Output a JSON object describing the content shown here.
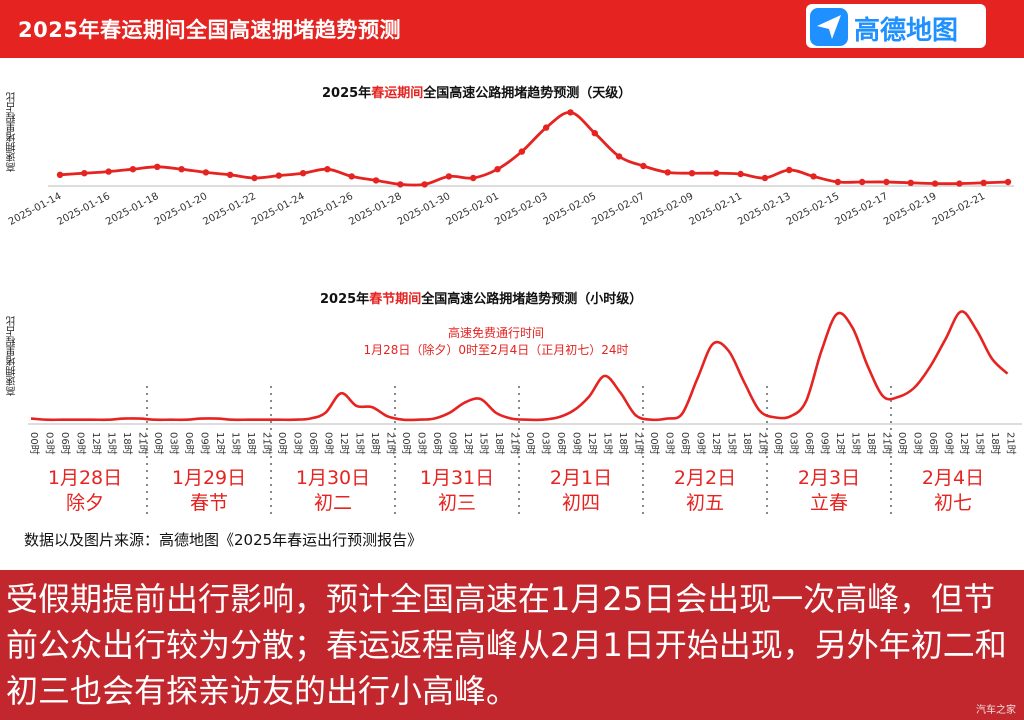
{
  "header": {
    "title": "2025年春运期间全国高速拥堵趋势预测",
    "logo_text": "高德地图",
    "color": "#e52421"
  },
  "chart_data": [
    {
      "type": "line",
      "title_parts": [
        "2025年",
        "春运期间",
        "全国高速公路拥堵趋势预测（天级）"
      ],
      "ylabel": "高速拥堵里程占比",
      "color": "#e52421",
      "x": [
        "2025-01-14",
        "2025-01-15",
        "2025-01-16",
        "2025-01-17",
        "2025-01-18",
        "2025-01-19",
        "2025-01-20",
        "2025-01-21",
        "2025-01-22",
        "2025-01-23",
        "2025-01-24",
        "2025-01-25",
        "2025-01-26",
        "2025-01-27",
        "2025-01-28",
        "2025-01-29",
        "2025-01-30",
        "2025-01-31",
        "2025-02-01",
        "2025-02-02",
        "2025-02-03",
        "2025-02-04",
        "2025-02-05",
        "2025-02-06",
        "2025-02-07",
        "2025-02-08",
        "2025-02-09",
        "2025-02-10",
        "2025-02-11",
        "2025-02-12",
        "2025-02-13",
        "2025-02-14",
        "2025-02-15",
        "2025-02-16",
        "2025-02-17",
        "2025-02-18",
        "2025-02-19",
        "2025-02-20",
        "2025-02-21",
        "2025-02-22"
      ],
      "tick_labels": [
        "2025-01-14",
        "2025-01-16",
        "2025-01-18",
        "2025-01-20",
        "2025-01-22",
        "2025-01-24",
        "2025-01-26",
        "2025-01-28",
        "2025-01-30",
        "2025-02-01",
        "2025-02-03",
        "2025-02-05",
        "2025-02-07",
        "2025-02-09",
        "2025-02-11",
        "2025-02-13",
        "2025-02-15",
        "2025-02-17",
        "2025-02-19",
        "2025-02-21"
      ],
      "values": [
        0.14,
        0.16,
        0.18,
        0.21,
        0.24,
        0.21,
        0.17,
        0.14,
        0.1,
        0.13,
        0.16,
        0.21,
        0.12,
        0.07,
        0.02,
        0.02,
        0.12,
        0.1,
        0.21,
        0.43,
        0.73,
        0.92,
        0.66,
        0.37,
        0.25,
        0.17,
        0.16,
        0.16,
        0.15,
        0.1,
        0.2,
        0.12,
        0.05,
        0.05,
        0.05,
        0.04,
        0.03,
        0.03,
        0.04,
        0.05
      ]
    },
    {
      "type": "line",
      "title_parts": [
        "2025年",
        "春节期间",
        "全国高速公路拥堵趋势预测（小时级）"
      ],
      "ylabel": "高速拥堵里程占比",
      "color": "#e52421",
      "annotation": [
        "高速免费通行时间",
        "1月28日（除夕）0时至2月4日（正月初七）24时"
      ],
      "hour_ticks": [
        "00时",
        "03时",
        "06时",
        "09时",
        "12时",
        "15时",
        "18时",
        "21时"
      ],
      "days": [
        {
          "date": "1月28日",
          "lunar": "除夕",
          "values": [
            0.03,
            0.02,
            0.02,
            0.02,
            0.02,
            0.02,
            0.03,
            0.03
          ]
        },
        {
          "date": "1月29日",
          "lunar": "春节",
          "values": [
            0.02,
            0.02,
            0.02,
            0.03,
            0.03,
            0.02,
            0.02,
            0.02
          ]
        },
        {
          "date": "1月30日",
          "lunar": "初二",
          "values": [
            0.02,
            0.02,
            0.03,
            0.08,
            0.25,
            0.14,
            0.13,
            0.05
          ]
        },
        {
          "date": "1月31日",
          "lunar": "初三",
          "values": [
            0.02,
            0.02,
            0.03,
            0.08,
            0.17,
            0.2,
            0.08,
            0.03
          ]
        },
        {
          "date": "2月1日",
          "lunar": "初四",
          "values": [
            0.02,
            0.02,
            0.04,
            0.1,
            0.22,
            0.4,
            0.26,
            0.06
          ]
        },
        {
          "date": "2月2日",
          "lunar": "初五",
          "values": [
            0.02,
            0.03,
            0.07,
            0.38,
            0.68,
            0.62,
            0.35,
            0.1
          ]
        },
        {
          "date": "2月3日",
          "lunar": "立春",
          "values": [
            0.04,
            0.05,
            0.18,
            0.62,
            0.94,
            0.82,
            0.48,
            0.22
          ]
        },
        {
          "date": "2月4日",
          "lunar": "初七",
          "values": [
            0.22,
            0.3,
            0.48,
            0.72,
            0.96,
            0.8,
            0.55,
            0.42
          ]
        }
      ]
    }
  ],
  "source": "数据以及图片来源：高德地图《2025年春运出行预测报告》",
  "caption": "受假期提前出行影响，预计全国高速在1月25日会出现一次高峰，但节前公众出行较为分散；春运返程高峰从2月1日开始出现，另外年初二和初三也会有探亲访友的出行小高峰。",
  "watermark": "汽车之家"
}
